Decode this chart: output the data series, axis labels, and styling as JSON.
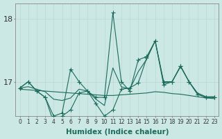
{
  "xlabel": "Humidex (Indice chaleur)",
  "bg_color": "#cce8e4",
  "line_color": "#1a6b5a",
  "grid_color": "#b8d8d4",
  "x": [
    0,
    1,
    2,
    3,
    4,
    5,
    6,
    7,
    8,
    9,
    10,
    11,
    12,
    13,
    14,
    15,
    16,
    17,
    18,
    19,
    20,
    21,
    22,
    23
  ],
  "series_marked1": [
    16.9,
    17.0,
    16.85,
    16.75,
    16.45,
    16.5,
    17.2,
    17.0,
    16.85,
    16.75,
    16.75,
    18.1,
    17.0,
    16.85,
    17.35,
    17.4,
    17.65,
    16.95,
    17.0,
    17.25,
    17.0,
    16.8,
    16.75,
    16.75
  ],
  "series_marked2": [
    16.9,
    17.0,
    16.85,
    16.75,
    16.35,
    16.45,
    16.55,
    16.82,
    16.85,
    16.65,
    16.45,
    16.55,
    16.88,
    16.9,
    16.98,
    17.38,
    17.65,
    17.0,
    17.0,
    17.25,
    17.0,
    16.8,
    16.75,
    16.75
  ],
  "series_line1": [
    16.88,
    16.87,
    16.86,
    16.85,
    16.84,
    16.83,
    16.82,
    16.81,
    16.8,
    16.79,
    16.78,
    16.78,
    16.79,
    16.8,
    16.81,
    16.82,
    16.84,
    16.83,
    16.81,
    16.8,
    16.78,
    16.76,
    16.74,
    16.73
  ],
  "series_line2": [
    16.9,
    16.92,
    16.88,
    16.84,
    16.72,
    16.7,
    16.74,
    16.88,
    16.85,
    16.72,
    16.62,
    17.22,
    16.92,
    16.88,
    17.16,
    17.36,
    17.65,
    16.98,
    17.0,
    17.24,
    17.0,
    16.82,
    16.76,
    16.76
  ],
  "ylim": [
    16.45,
    18.25
  ],
  "ytick_positions": [
    17.0,
    18.0
  ],
  "ytick_labels": [
    "17",
    "18"
  ],
  "xlim": [
    -0.5,
    23.5
  ],
  "xticks": [
    0,
    1,
    2,
    3,
    4,
    5,
    6,
    7,
    8,
    9,
    10,
    11,
    12,
    13,
    14,
    15,
    16,
    17,
    18,
    19,
    20,
    21,
    22,
    23
  ]
}
